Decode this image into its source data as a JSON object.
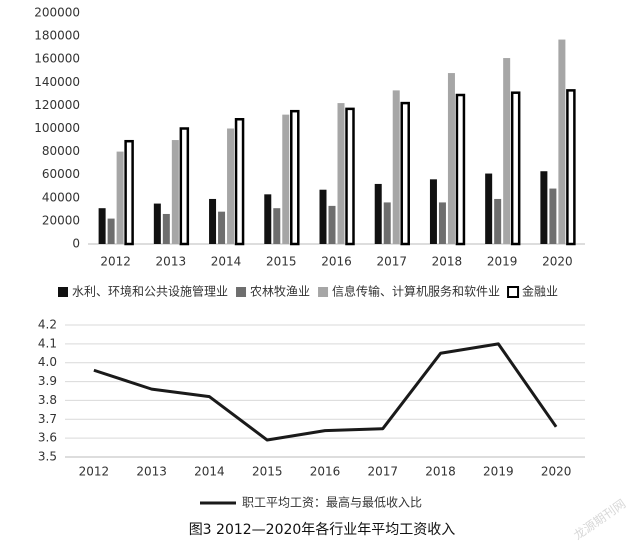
{
  "chart_data": [
    {
      "type": "bar",
      "categories": [
        "2012",
        "2013",
        "2014",
        "2015",
        "2016",
        "2017",
        "2018",
        "2019",
        "2020"
      ],
      "series": [
        {
          "name": "水利、环境和公共设施管理业",
          "color": "#111111",
          "values": [
            31000,
            35000,
            39000,
            43000,
            47000,
            52000,
            56000,
            61000,
            63000
          ]
        },
        {
          "name": "农林牧渔业",
          "color": "#6e6e6e",
          "values": [
            22000,
            26000,
            28000,
            31000,
            33000,
            36000,
            36000,
            39000,
            48000
          ]
        },
        {
          "name": "信息传输、计算机服务和软件业",
          "color": "#a6a6a6",
          "values": [
            80000,
            90000,
            100000,
            112000,
            122000,
            133000,
            148000,
            161000,
            177000
          ]
        },
        {
          "name": "金融业",
          "color": "#ffffff",
          "edgecolor": "#000000",
          "values": [
            89000,
            100000,
            108000,
            115000,
            117000,
            122000,
            129000,
            131000,
            133000
          ]
        }
      ],
      "ylim": [
        0,
        200000
      ],
      "yticks": [
        0,
        20000,
        40000,
        60000,
        80000,
        100000,
        120000,
        140000,
        160000,
        180000,
        200000
      ],
      "grid": false
    },
    {
      "type": "line",
      "categories": [
        "2012",
        "2013",
        "2014",
        "2015",
        "2016",
        "2017",
        "2018",
        "2019",
        "2020"
      ],
      "series": [
        {
          "name": "职工平均工资：最高与最低收入比",
          "color": "#1a1a1a",
          "values": [
            3.96,
            3.86,
            3.82,
            3.59,
            3.64,
            3.65,
            4.05,
            4.1,
            3.66
          ]
        }
      ],
      "ylim": [
        3.5,
        4.2
      ],
      "yticks": [
        3.5,
        3.6,
        3.7,
        3.8,
        3.9,
        {
          "value": 4,
          "label": "4.0"
        },
        4.1,
        4.2
      ],
      "grid": true
    }
  ],
  "caption": "图3 2012—2020年各行业年平均工资收入",
  "watermark": "龙源期刊网"
}
